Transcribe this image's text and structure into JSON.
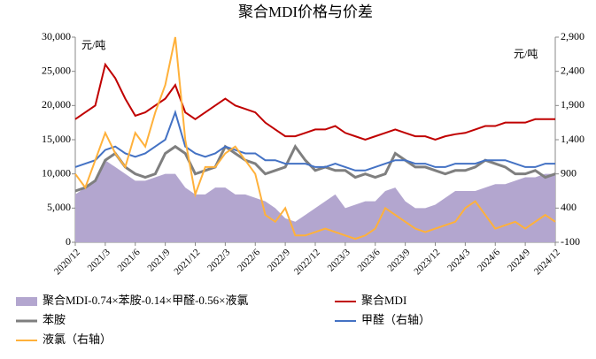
{
  "chart_data": {
    "type": "line",
    "title": "聚合MDI价格与价差",
    "y_unit": "元/吨",
    "y2_unit": "元/吨",
    "categories": [
      "2020/12",
      null,
      null,
      "2021/3",
      null,
      null,
      "2021/6",
      null,
      null,
      "2021/9",
      null,
      null,
      "2021/12",
      null,
      null,
      "2022/3",
      null,
      null,
      "2022/6",
      null,
      null,
      "2022/9",
      null,
      null,
      "2022/12",
      null,
      null,
      "2023/3",
      null,
      null,
      "2023/6",
      null,
      null,
      "2023/9",
      null,
      null,
      "2023/12",
      null,
      null,
      "2024/3",
      null,
      null,
      "2024/6",
      null,
      null,
      "2024/9",
      null,
      null,
      "2024/12"
    ],
    "ylim": [
      0,
      30000
    ],
    "yticks": [
      0,
      {
        "value": 5000,
        "label": "5,000"
      },
      {
        "value": 10000,
        "label": "10,000"
      },
      {
        "value": 15000,
        "label": "15,000"
      },
      {
        "value": 20000,
        "label": "20,000"
      },
      {
        "value": 25000,
        "label": "25,000"
      },
      {
        "value": 30000,
        "label": "30,000"
      }
    ],
    "y2lim": [
      -100,
      2900
    ],
    "y2ticks": [
      -100,
      400,
      900,
      {
        "value": 1400,
        "label": "1,400"
      },
      {
        "value": 1900,
        "label": "1,900"
      },
      {
        "value": 2400,
        "label": "2,400"
      },
      {
        "value": 2900,
        "label": "2,900"
      }
    ],
    "series": [
      {
        "name": "聚合MDI-0.74×苯胺-0.14×甲醛-0.56×液氯",
        "style": "area",
        "color": "#b3a6cf",
        "axis": "y",
        "values": [
          7000,
          8000,
          9000,
          12000,
          11000,
          10000,
          9000,
          9000,
          9500,
          10000,
          10000,
          8000,
          7000,
          7000,
          8000,
          8000,
          7000,
          7000,
          6500,
          6000,
          5000,
          3500,
          3000,
          4000,
          5000,
          6000,
          7000,
          5000,
          5500,
          6000,
          6000,
          7500,
          8000,
          6000,
          5000,
          5000,
          5500,
          6500,
          7500,
          7500,
          7500,
          8000,
          8500,
          8500,
          9000,
          9500,
          9500,
          10000,
          10000
        ]
      },
      {
        "name": "聚合MDI",
        "style": "line",
        "color": "#c00000",
        "axis": "y",
        "values": [
          18000,
          19000,
          20000,
          26000,
          24000,
          21000,
          18500,
          19000,
          20000,
          21000,
          23000,
          19000,
          18000,
          19000,
          20000,
          21000,
          20000,
          19500,
          19000,
          17500,
          16500,
          15500,
          15500,
          16000,
          16500,
          16500,
          17000,
          16000,
          15500,
          15000,
          15500,
          16000,
          16500,
          16000,
          15500,
          15500,
          15000,
          15500,
          15800,
          16000,
          16500,
          17000,
          17000,
          17500,
          17500,
          17500,
          18000,
          18000,
          18000
        ]
      },
      {
        "name": "苯胺",
        "style": "line",
        "color": "#7f7f7f",
        "axis": "y",
        "width": 3,
        "values": [
          7500,
          8000,
          9000,
          12000,
          13000,
          11000,
          10000,
          9500,
          10000,
          13000,
          14000,
          13000,
          10000,
          10500,
          11000,
          14000,
          13000,
          12000,
          11500,
          10000,
          10500,
          11000,
          14000,
          12000,
          10500,
          11000,
          10500,
          10500,
          9500,
          10000,
          9500,
          10000,
          13000,
          12000,
          11000,
          11000,
          10500,
          10000,
          10500,
          10500,
          11000,
          12000,
          11500,
          11000,
          10000,
          10000,
          10500,
          9500,
          10000
        ]
      },
      {
        "name": "甲醛（右轴）",
        "style": "line",
        "color": "#4472c4",
        "axis": "y2",
        "values": [
          1000,
          1050,
          1100,
          1250,
          1300,
          1200,
          1150,
          1200,
          1300,
          1400,
          1800,
          1300,
          1200,
          1150,
          1200,
          1300,
          1250,
          1200,
          1200,
          1100,
          1100,
          1050,
          1050,
          1050,
          1000,
          1000,
          1050,
          1000,
          950,
          950,
          1000,
          1050,
          1100,
          1100,
          1050,
          1050,
          1000,
          1000,
          1050,
          1050,
          1050,
          1100,
          1100,
          1100,
          1050,
          1000,
          1000,
          1050,
          1050
        ]
      },
      {
        "name": "液氯（右轴）",
        "style": "line",
        "color": "#ffb13b",
        "axis": "y2",
        "values": [
          900,
          700,
          1100,
          1500,
          1200,
          1000,
          1500,
          1300,
          1800,
          2200,
          2900,
          1400,
          600,
          1000,
          1000,
          1200,
          1300,
          1100,
          900,
          300,
          200,
          400,
          0,
          0,
          50,
          100,
          50,
          0,
          -50,
          0,
          100,
          400,
          300,
          200,
          100,
          50,
          100,
          150,
          200,
          400,
          500,
          300,
          100,
          150,
          200,
          100,
          200,
          300,
          200
        ]
      }
    ]
  }
}
